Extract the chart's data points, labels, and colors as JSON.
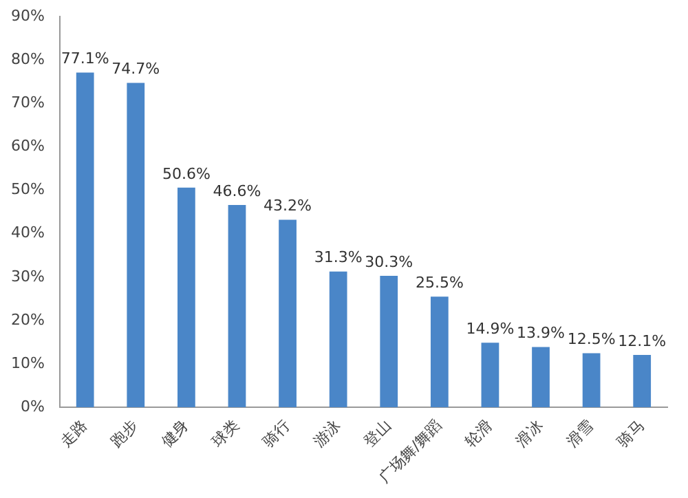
{
  "chart_data": {
    "type": "bar",
    "categories": [
      "走路",
      "跑步",
      "健身",
      "球类",
      "骑行",
      "游泳",
      "登山",
      "广场舞/舞蹈",
      "轮滑",
      "滑冰",
      "滑雪",
      "骑马"
    ],
    "values": [
      77.1,
      74.7,
      50.6,
      46.6,
      43.2,
      31.3,
      30.3,
      25.5,
      14.9,
      13.9,
      12.5,
      12.1
    ],
    "color": "#4a86c8",
    "ylim": [
      0,
      90
    ],
    "yticks": [
      {
        "value": 0,
        "label": "0%"
      },
      {
        "value": 10,
        "label": "10%"
      },
      {
        "value": 20,
        "label": "20%"
      },
      {
        "value": 30,
        "label": "30%"
      },
      {
        "value": 40,
        "label": "40%"
      },
      {
        "value": 50,
        "label": "50%"
      },
      {
        "value": 60,
        "label": "60%"
      },
      {
        "value": 70,
        "label": "70%"
      },
      {
        "value": 80,
        "label": "80%"
      },
      {
        "value": 90,
        "label": "90%"
      }
    ],
    "value_labels": [
      "77.1%",
      "74.7%",
      "50.6%",
      "46.6%",
      "43.2%",
      "31.3%",
      "30.3%",
      "25.5%",
      "14.9%",
      "13.9%",
      "12.5%",
      "12.1%"
    ],
    "grid": false
  }
}
